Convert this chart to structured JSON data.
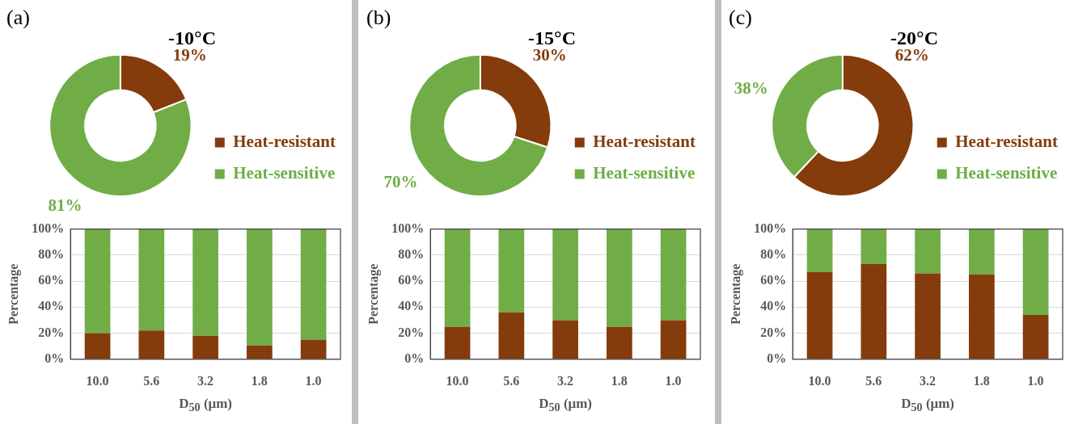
{
  "chart_data": [
    {
      "type": "donut",
      "title": "-10°C",
      "annotations": [
        "(a)"
      ],
      "categories": [
        "Heat-resistant",
        "Heat-sensitive"
      ],
      "values": [
        19,
        81
      ],
      "colors": [
        "#843c0c",
        "#70ad47"
      ],
      "value_labels": [
        "19%",
        "81%"
      ],
      "legend": "bottom right"
    },
    {
      "type": "donut",
      "title": "-15°C",
      "annotations": [
        "(b)"
      ],
      "categories": [
        "Heat-resistant",
        "Heat-sensitive"
      ],
      "values": [
        30,
        70
      ],
      "colors": [
        "#843c0c",
        "#70ad47"
      ],
      "value_labels": [
        "30%",
        "70%"
      ],
      "legend": "bottom right"
    },
    {
      "type": "donut",
      "title": "-20°C",
      "annotations": [
        "(c)"
      ],
      "categories": [
        "Heat-resistant",
        "Heat-sensitive"
      ],
      "values": [
        62,
        38
      ],
      "colors": [
        "#843c0c",
        "#70ad47"
      ],
      "value_labels": [
        "62%",
        "38%"
      ],
      "legend": "bottom right"
    },
    {
      "type": "bar",
      "stacked": true,
      "xlabel": "D$_{50}$ (μm)",
      "ylabel": "Percentage",
      "categories": [
        "10.0",
        "5.6",
        "3.2",
        "1.8",
        "1.0"
      ],
      "ylim": [
        0,
        100
      ],
      "yticks": [
        {
          "value": 0,
          "label": "0%"
        },
        {
          "value": 20,
          "label": "20%"
        },
        {
          "value": 40,
          "label": "40%"
        },
        {
          "value": 60,
          "label": "60%"
        },
        {
          "value": 80,
          "label": "80%"
        },
        {
          "value": 100,
          "label": "100%"
        }
      ],
      "grid": "y",
      "series": [
        {
          "color": "#843c0c",
          "values": [
            20,
            22,
            18,
            10.5,
            15
          ]
        },
        {
          "color": "#70ad47",
          "values": [
            80,
            78,
            82,
            89.5,
            85
          ]
        }
      ]
    },
    {
      "type": "bar",
      "stacked": true,
      "xlabel": "D$_{50}$ (μm)",
      "ylabel": "Percentage",
      "categories": [
        "10.0",
        "5.6",
        "3.2",
        "1.8",
        "1.0"
      ],
      "ylim": [
        0,
        100
      ],
      "yticks": [
        {
          "value": 0,
          "label": "0%"
        },
        {
          "value": 20,
          "label": "20%"
        },
        {
          "value": 40,
          "label": "40%"
        },
        {
          "value": 60,
          "label": "60%"
        },
        {
          "value": 80,
          "label": "80%"
        },
        {
          "value": 100,
          "label": "100%"
        }
      ],
      "grid": "y",
      "series": [
        {
          "color": "#843c0c",
          "values": [
            25,
            36,
            30,
            25,
            30
          ]
        },
        {
          "color": "#70ad47",
          "values": [
            75,
            64,
            70,
            75,
            70
          ]
        }
      ]
    },
    {
      "type": "bar",
      "stacked": true,
      "xlabel": "D$_{50}$ (μm)",
      "ylabel": "Percentage",
      "categories": [
        "10.0",
        "5.6",
        "3.2",
        "1.8",
        "1.0"
      ],
      "ylim": [
        0,
        100
      ],
      "yticks": [
        {
          "value": 0,
          "label": "0%"
        },
        {
          "value": 20,
          "label": "20%"
        },
        {
          "value": 40,
          "label": "40%"
        },
        {
          "value": 60,
          "label": "60%"
        },
        {
          "value": 80,
          "label": "80%"
        },
        {
          "value": 100,
          "label": "100%"
        }
      ],
      "grid": "y",
      "series": [
        {
          "color": "#843c0c",
          "values": [
            67,
            73,
            66,
            65,
            34
          ]
        },
        {
          "color": "#70ad47",
          "values": [
            33,
            27,
            34,
            35,
            66
          ]
        }
      ]
    }
  ]
}
